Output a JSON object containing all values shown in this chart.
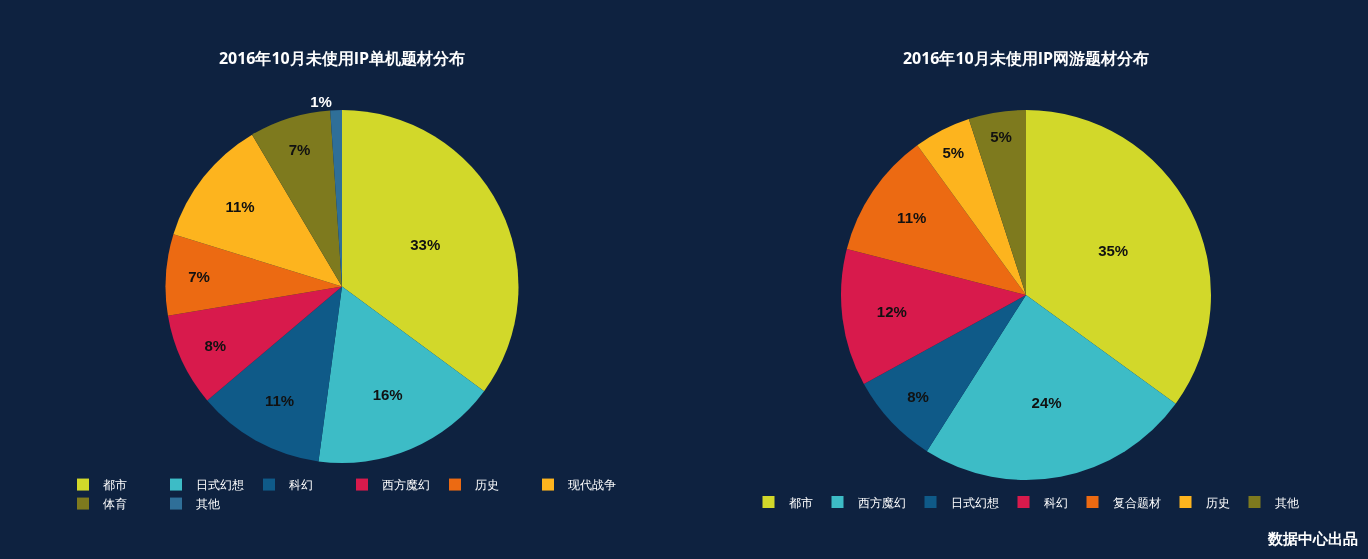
{
  "chart_data": [
    {
      "type": "pie",
      "title": "2016年10月未使用IP单机题材分布",
      "categories": [
        "都市",
        "日式幻想",
        "科幻",
        "西方魔幻",
        "历史",
        "现代战争",
        "体育",
        "其他"
      ],
      "values": [
        33,
        16,
        11,
        8,
        7,
        11,
        7,
        1
      ],
      "value_labels": [
        "33%",
        "16%",
        "11%",
        "8%",
        "7%",
        "11%",
        "7%",
        "1%"
      ],
      "colors": [
        "#d2d82a",
        "#3dbcc6",
        "#0f5a88",
        "#d81a4c",
        "#ec6a12",
        "#fdb41e",
        "#7e7a1e",
        "#2f6f98"
      ],
      "legend": "bottom"
    },
    {
      "type": "pie",
      "title": "2016年10月未使用IP网游题材分布",
      "categories": [
        "都市",
        "西方魔幻",
        "日式幻想",
        "科幻",
        "复合题材",
        "历史",
        "其他"
      ],
      "values": [
        35,
        24,
        8,
        12,
        11,
        5,
        5
      ],
      "value_labels": [
        "35%",
        "24%",
        "8%",
        "12%",
        "11%",
        "5%",
        "5%"
      ],
      "colors": [
        "#d2d82a",
        "#3dbcc6",
        "#0f5a88",
        "#d81a4c",
        "#ec6a12",
        "#fdb41e",
        "#7e7a1e"
      ],
      "legend": "bottom",
      "annotations": [
        "数据中心出品"
      ]
    }
  ]
}
